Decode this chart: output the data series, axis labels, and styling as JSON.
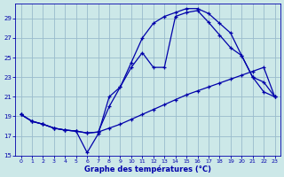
{
  "xlabel": "Graphe des températures (°C)",
  "bg_color": "#cce8e8",
  "line_color": "#0000aa",
  "grid_color": "#99bbcc",
  "xlim_min": -0.5,
  "xlim_max": 23.5,
  "ylim_min": 15,
  "ylim_max": 30.5,
  "yticks": [
    15,
    17,
    19,
    21,
    23,
    25,
    27,
    29
  ],
  "xticks": [
    0,
    1,
    2,
    3,
    4,
    5,
    6,
    7,
    8,
    9,
    10,
    11,
    12,
    13,
    14,
    15,
    16,
    17,
    18,
    19,
    20,
    21,
    22,
    23
  ],
  "line1_x": [
    0,
    1,
    2,
    3,
    4,
    5,
    6,
    7,
    8,
    9,
    10,
    11,
    12,
    13,
    14,
    15,
    16,
    17,
    18,
    19,
    20,
    21,
    22,
    23
  ],
  "line1_y": [
    19.2,
    18.5,
    18.2,
    17.8,
    17.6,
    17.5,
    17.3,
    17.4,
    17.8,
    18.2,
    18.7,
    19.2,
    19.7,
    20.2,
    20.7,
    21.2,
    21.6,
    22.0,
    22.4,
    22.8,
    23.2,
    23.6,
    24.0,
    21.0
  ],
  "line2_x": [
    0,
    1,
    2,
    3,
    4,
    5,
    6,
    7,
    8,
    9,
    10,
    11,
    12,
    13,
    14,
    15,
    16,
    17,
    18,
    19,
    20,
    21,
    22,
    23
  ],
  "line2_y": [
    19.2,
    18.5,
    18.2,
    17.8,
    17.6,
    17.5,
    17.3,
    17.4,
    20.0,
    22.0,
    24.5,
    27.0,
    28.5,
    29.2,
    29.6,
    30.0,
    30.0,
    29.5,
    28.5,
    27.5,
    25.2,
    23.0,
    21.5,
    21.0
  ],
  "line3_x": [
    0,
    1,
    2,
    3,
    4,
    5,
    6,
    7,
    8,
    9,
    10,
    11,
    12,
    13,
    14,
    15,
    16,
    17,
    18,
    19,
    20,
    21,
    22,
    23
  ],
  "line3_y": [
    19.2,
    18.5,
    18.2,
    17.8,
    17.6,
    17.5,
    15.3,
    17.2,
    21.0,
    22.0,
    24.0,
    25.5,
    24.0,
    24.0,
    29.2,
    29.6,
    29.8,
    28.6,
    27.3,
    26.0,
    25.2,
    23.0,
    22.5,
    21.0
  ],
  "markersize": 3.5,
  "linewidth": 0.9
}
